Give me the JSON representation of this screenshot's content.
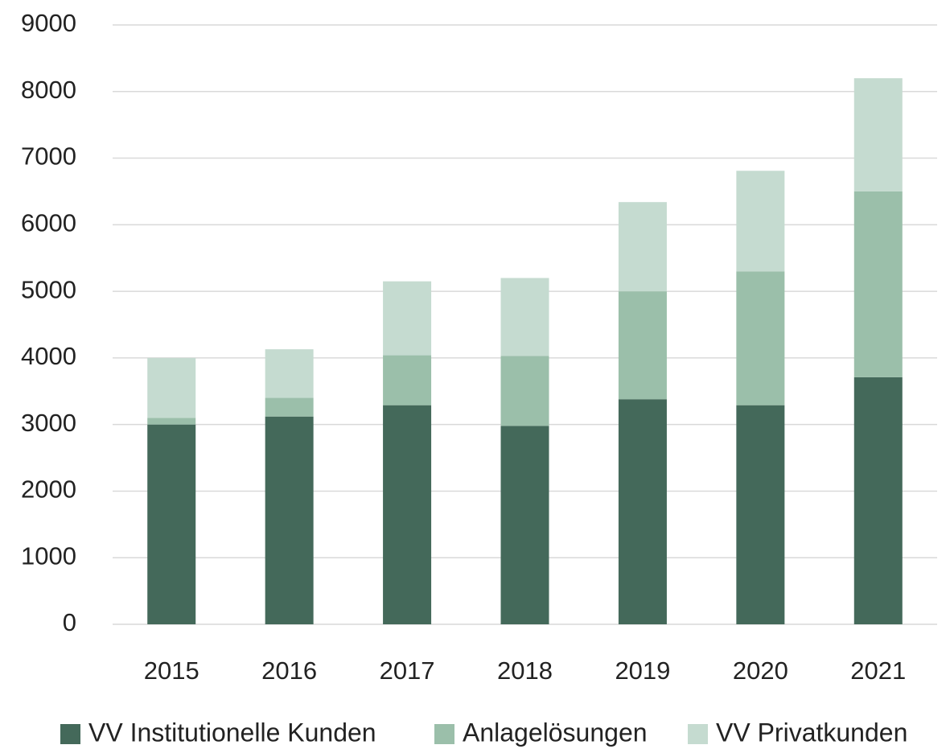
{
  "chart_data": {
    "type": "stacked_bar",
    "categories": [
      "2015",
      "2016",
      "2017",
      "2018",
      "2019",
      "2020",
      "2021"
    ],
    "series": [
      {
        "name": "VV Institutionelle Kunden",
        "color": "#44695a",
        "values": [
          3000,
          3120,
          3290,
          2980,
          3380,
          3290,
          3710
        ]
      },
      {
        "name": "Anlagelösungen",
        "color": "#9bbfaa",
        "values": [
          100,
          280,
          750,
          1050,
          1620,
          2010,
          2790
        ]
      },
      {
        "name": "VV Privatkunden",
        "color": "#c5dbd0",
        "values": [
          900,
          730,
          1110,
          1170,
          1340,
          1510,
          1700
        ]
      }
    ],
    "ylim": [
      0,
      9000
    ],
    "yticks": [
      0,
      1000,
      2000,
      3000,
      4000,
      5000,
      6000,
      7000,
      8000,
      9000
    ],
    "grid": true,
    "legend": "bottom"
  }
}
